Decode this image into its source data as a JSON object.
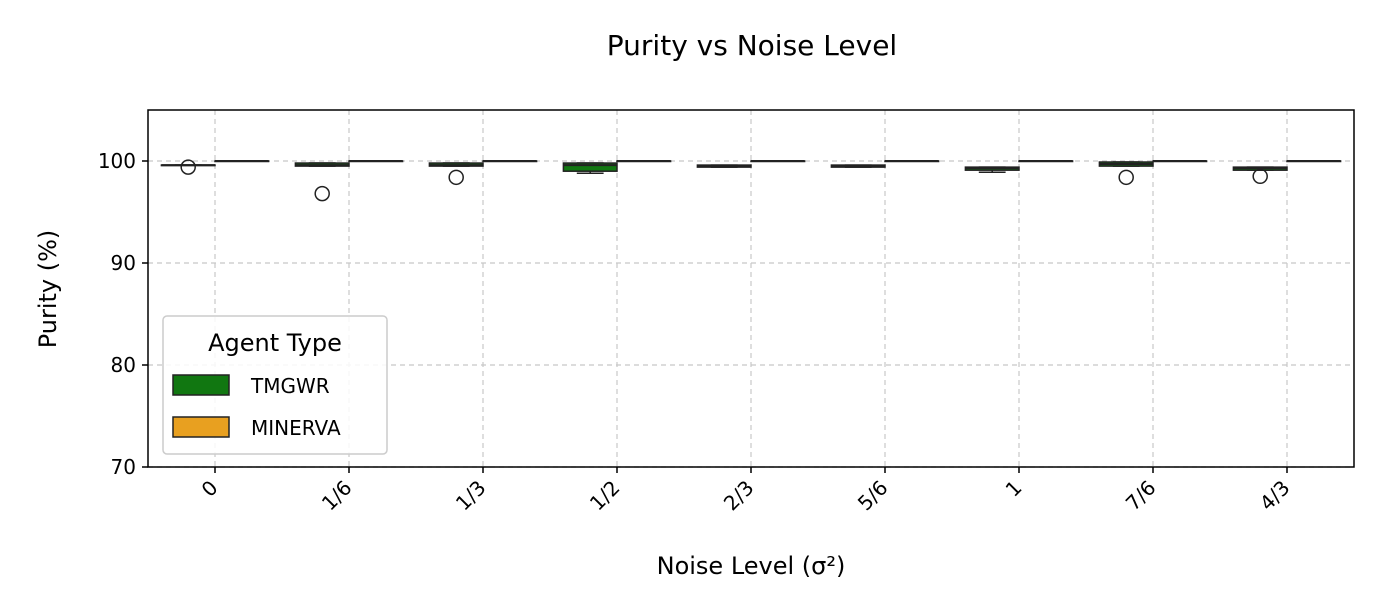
{
  "chart_data": {
    "type": "box",
    "title": "Purity vs Noise Level",
    "xlabel": "Noise Level (σ²)",
    "ylabel": "Purity (%)",
    "ylim": [
      70,
      105
    ],
    "yticks": [
      70,
      80,
      90,
      100
    ],
    "categories": [
      "0",
      "1/6",
      "1/3",
      "1/2",
      "2/3",
      "5/6",
      "1",
      "7/6",
      "4/3"
    ],
    "grid": true,
    "legend": {
      "title": "Agent Type",
      "position": "lower-left"
    },
    "series": [
      {
        "name": "TMGWR",
        "color": "#117711",
        "boxes": [
          {
            "low": 99.6,
            "q1": 99.6,
            "median": 99.6,
            "q3": 99.6,
            "high": 99.6,
            "outliers": [
              99.4
            ]
          },
          {
            "low": 99.5,
            "q1": 99.5,
            "median": 99.6,
            "q3": 99.8,
            "high": 99.8,
            "outliers": [
              96.8
            ]
          },
          {
            "low": 99.5,
            "q1": 99.5,
            "median": 99.6,
            "q3": 99.8,
            "high": 99.8,
            "outliers": [
              98.4
            ]
          },
          {
            "low": 98.8,
            "q1": 99.0,
            "median": 99.6,
            "q3": 99.8,
            "high": 99.8,
            "outliers": []
          },
          {
            "low": 99.4,
            "q1": 99.4,
            "median": 99.5,
            "q3": 99.6,
            "high": 99.6,
            "outliers": []
          },
          {
            "low": 99.4,
            "q1": 99.4,
            "median": 99.5,
            "q3": 99.6,
            "high": 99.6,
            "outliers": []
          },
          {
            "low": 98.9,
            "q1": 99.1,
            "median": 99.3,
            "q3": 99.4,
            "high": 99.4,
            "outliers": []
          },
          {
            "low": 99.5,
            "q1": 99.5,
            "median": 99.7,
            "q3": 99.9,
            "high": 99.9,
            "outliers": [
              98.4
            ]
          },
          {
            "low": 99.1,
            "q1": 99.1,
            "median": 99.3,
            "q3": 99.4,
            "high": 99.4,
            "outliers": [
              98.5
            ]
          }
        ]
      },
      {
        "name": "MINERVA",
        "color": "#e8a020",
        "boxes": [
          {
            "low": 100,
            "q1": 100,
            "median": 100,
            "q3": 100,
            "high": 100,
            "outliers": []
          },
          {
            "low": 100,
            "q1": 100,
            "median": 100,
            "q3": 100,
            "high": 100,
            "outliers": []
          },
          {
            "low": 100,
            "q1": 100,
            "median": 100,
            "q3": 100,
            "high": 100,
            "outliers": []
          },
          {
            "low": 100,
            "q1": 100,
            "median": 100,
            "q3": 100,
            "high": 100,
            "outliers": []
          },
          {
            "low": 100,
            "q1": 100,
            "median": 100,
            "q3": 100,
            "high": 100,
            "outliers": []
          },
          {
            "low": 100,
            "q1": 100,
            "median": 100,
            "q3": 100,
            "high": 100,
            "outliers": []
          },
          {
            "low": 100,
            "q1": 100,
            "median": 100,
            "q3": 100,
            "high": 100,
            "outliers": []
          },
          {
            "low": 100,
            "q1": 100,
            "median": 100,
            "q3": 100,
            "high": 100,
            "outliers": []
          },
          {
            "low": 100,
            "q1": 100,
            "median": 100,
            "q3": 100,
            "high": 100,
            "outliers": []
          }
        ]
      }
    ]
  }
}
